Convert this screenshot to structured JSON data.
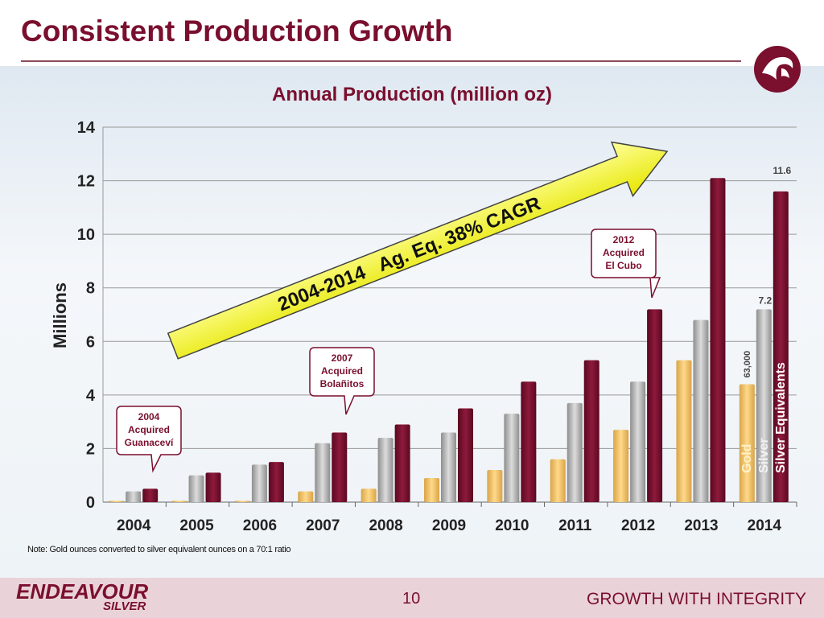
{
  "slide": {
    "title": "Consistent Production Growth",
    "note": "Note: Gold ounces converted to silver equivalent ounces on a 70:1 ratio",
    "page_number": "10",
    "brand_line1": "ENDEAVOUR",
    "brand_line2": "SILVER",
    "tagline": "GROWTH WITH INTEGRITY"
  },
  "chart_data": {
    "type": "bar",
    "title": "Annual Production (million oz)",
    "ylabel": "Millions",
    "xlabel": "",
    "ylim": [
      0,
      14
    ],
    "yticks": [
      0,
      2,
      4,
      6,
      8,
      10,
      12,
      14
    ],
    "grid": true,
    "categories": [
      "2004",
      "2005",
      "2006",
      "2007",
      "2008",
      "2009",
      "2010",
      "2011",
      "2012",
      "2013",
      "2014"
    ],
    "series": [
      {
        "name": "Gold",
        "color": "#f3c56a",
        "values": [
          0.05,
          0.05,
          0.05,
          0.4,
          0.5,
          0.9,
          1.2,
          1.6,
          2.7,
          5.3,
          4.4
        ]
      },
      {
        "name": "Silver",
        "color": "#b4b4b4",
        "values": [
          0.4,
          1.0,
          1.4,
          2.2,
          2.4,
          2.6,
          3.3,
          3.7,
          4.5,
          6.8,
          7.2
        ]
      },
      {
        "name": "Silver Equivalents",
        "color": "#7a0f2e",
        "values": [
          0.5,
          1.1,
          1.5,
          2.6,
          2.9,
          3.5,
          4.5,
          5.3,
          7.2,
          12.1,
          11.6
        ]
      }
    ],
    "data_labels": {
      "gold_2014": "63,000",
      "silver_2014": "7.2",
      "silver_eq_2014": "11.6"
    },
    "annotations": {
      "arrow_text": "2004-2014   Ag. Eq. 38% CAGR",
      "callouts": [
        {
          "year": "2004",
          "lines": [
            "2004",
            "Acquired",
            "Guanaceví"
          ]
        },
        {
          "year": "2007",
          "lines": [
            "2007",
            "Acquired",
            "Bolañitos"
          ]
        },
        {
          "year": "2012",
          "lines": [
            "2012",
            "Acquired",
            "El Cubo"
          ]
        }
      ]
    }
  }
}
